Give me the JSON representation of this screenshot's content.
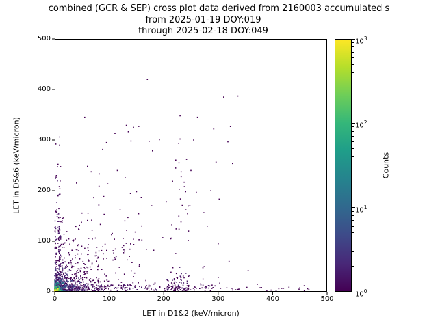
{
  "chart_data": {
    "type": "scatter",
    "title_lines": [
      "combined (GCR & SEP) cross plot data derived from 2160003 accumulated s",
      "from 2025-01-19 DOY:019",
      "through 2025-02-18 DOY:049"
    ],
    "xlabel": "LET in D1&2 (keV/micron)",
    "ylabel": "LET in D5&6 (keV/micron)",
    "xlim": [
      0,
      500
    ],
    "ylim": [
      0,
      500
    ],
    "xticks": [
      0,
      100,
      200,
      300,
      400,
      500
    ],
    "yticks": [
      0,
      100,
      200,
      300,
      400,
      500
    ],
    "grid": false,
    "legend": false,
    "colorbar": {
      "label": "Counts",
      "scale": "log",
      "range": [
        1,
        1000
      ],
      "tick_exponents": [
        0,
        1,
        2,
        3
      ],
      "colormap": "viridis",
      "colormap_hex": [
        "#440154",
        "#482878",
        "#3e4a89",
        "#31688e",
        "#26828e",
        "#1f9e89",
        "#35b779",
        "#6ece58",
        "#b5de2b",
        "#fde725"
      ]
    },
    "point_color_single_count": "#440154",
    "clusters": [
      {
        "name": "mid-cloud",
        "n": 260,
        "x": [
          8,
          210
        ],
        "y": [
          8,
          160
        ],
        "dist": "exp-xy",
        "scale": 55,
        "colors": [
          "#440154"
        ]
      },
      {
        "name": "diagonal-trend",
        "n": 45,
        "x": [
          15,
          165
        ],
        "y": [
          10,
          170
        ],
        "dist": "diag",
        "scale": 0,
        "colors": [
          "#440154"
        ]
      },
      {
        "name": "x-axis-band",
        "n": 300,
        "x": [
          0,
          310
        ],
        "y": [
          0,
          14
        ],
        "dist": "exp-x",
        "scale": 95,
        "colors": [
          "#440154",
          "#481b6d"
        ]
      },
      {
        "name": "x-axis-band-far",
        "n": 22,
        "x": [
          300,
          470
        ],
        "y": [
          0,
          10
        ],
        "dist": "uniform",
        "scale": 0,
        "colors": [
          "#440154"
        ]
      },
      {
        "name": "y-axis-band",
        "n": 170,
        "x": [
          0,
          11
        ],
        "y": [
          0,
          310
        ],
        "dist": "exp-y",
        "scale": 85,
        "colors": [
          "#440154",
          "#481b6d"
        ]
      },
      {
        "name": "column-x230-low",
        "n": 80,
        "x": [
          206,
          248
        ],
        "y": [
          0,
          55
        ],
        "dist": "exp-y",
        "scale": 22,
        "colors": [
          "#440154",
          "#481b6d"
        ]
      },
      {
        "name": "column-x230-high",
        "n": 22,
        "x": [
          212,
          246
        ],
        "y": [
          55,
          265
        ],
        "dist": "uniform",
        "scale": 0,
        "colors": [
          "#440154"
        ]
      },
      {
        "name": "right-low-sparse",
        "n": 40,
        "x": [
          200,
          310
        ],
        "y": [
          0,
          50
        ],
        "dist": "exp-y",
        "scale": 20,
        "colors": [
          "#440154"
        ]
      },
      {
        "name": "upper-sparse",
        "n": 32,
        "x": [
          15,
          330
        ],
        "y": [
          150,
          330
        ],
        "dist": "uniform",
        "scale": 0,
        "colors": [
          "#440154"
        ]
      },
      {
        "name": "origin-halo",
        "n": 420,
        "x": [
          0,
          60
        ],
        "y": [
          0,
          60
        ],
        "dist": "exp-xy",
        "scale": 14,
        "colors": [
          "#440154",
          "#46327e",
          "#414487"
        ]
      },
      {
        "name": "origin-teal",
        "n": 160,
        "x": [
          0,
          22
        ],
        "y": [
          0,
          22
        ],
        "dist": "exp-xy",
        "scale": 7,
        "colors": [
          "#2c728e",
          "#3b528b",
          "#365c8d",
          "#21918c"
        ]
      },
      {
        "name": "origin-green",
        "n": 90,
        "x": [
          0,
          12
        ],
        "y": [
          0,
          12
        ],
        "dist": "exp-xy",
        "scale": 4,
        "colors": [
          "#4ac16d",
          "#2db27d",
          "#35b779"
        ]
      },
      {
        "name": "origin-core",
        "n": 50,
        "x": [
          0,
          6
        ],
        "y": [
          0,
          6
        ],
        "dist": "exp-xy",
        "scale": 2.5,
        "colors": [
          "#fde725",
          "#d2e21b",
          "#a0da39"
        ]
      }
    ],
    "outliers": [
      [
        3,
        230
      ],
      [
        6,
        252
      ],
      [
        2,
        292
      ],
      [
        9,
        290
      ],
      [
        95,
        295
      ],
      [
        140,
        298
      ],
      [
        170,
        420
      ],
      [
        230,
        348
      ],
      [
        262,
        345
      ],
      [
        310,
        385
      ],
      [
        336,
        387
      ],
      [
        230,
        302
      ],
      [
        255,
        300
      ],
      [
        242,
        262
      ],
      [
        228,
        255
      ],
      [
        250,
        240
      ],
      [
        232,
        228
      ],
      [
        238,
        208
      ],
      [
        150,
        198
      ],
      [
        120,
        162
      ],
      [
        178,
        170
      ],
      [
        60,
        248
      ],
      [
        40,
        215
      ],
      [
        55,
        345
      ],
      [
        355,
        42
      ],
      [
        372,
        15
      ],
      [
        430,
        9
      ],
      [
        458,
        12
      ],
      [
        300,
        95
      ],
      [
        320,
        60
      ],
      [
        280,
        130
      ],
      [
        205,
        178
      ]
    ]
  }
}
